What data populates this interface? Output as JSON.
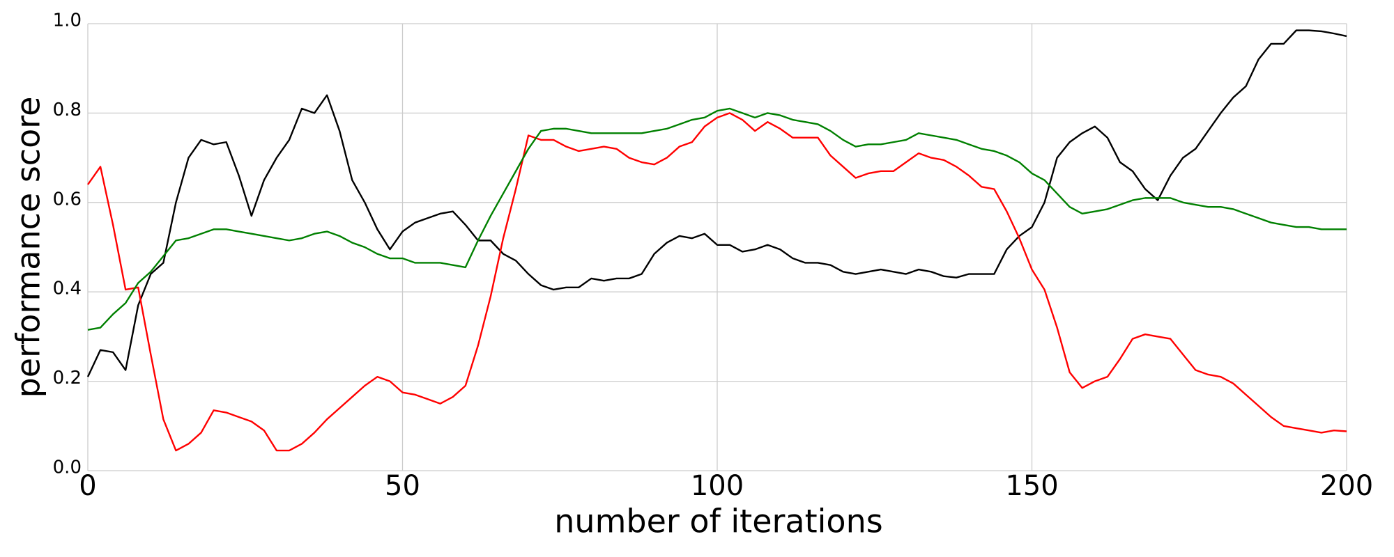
{
  "chart_data": {
    "type": "line",
    "xlabel": "number of iterations",
    "ylabel": "performance score",
    "x": [
      0,
      2,
      4,
      6,
      8,
      10,
      12,
      14,
      16,
      18,
      20,
      22,
      24,
      26,
      28,
      30,
      32,
      34,
      36,
      38,
      40,
      42,
      44,
      46,
      48,
      50,
      52,
      54,
      56,
      58,
      60,
      62,
      64,
      66,
      68,
      70,
      72,
      74,
      76,
      78,
      80,
      82,
      84,
      86,
      88,
      90,
      92,
      94,
      96,
      98,
      100,
      102,
      104,
      106,
      108,
      110,
      112,
      114,
      116,
      118,
      120,
      122,
      124,
      126,
      128,
      130,
      132,
      134,
      136,
      138,
      140,
      142,
      144,
      146,
      148,
      150,
      152,
      154,
      156,
      158,
      160,
      162,
      164,
      166,
      168,
      170,
      172,
      174,
      176,
      178,
      180,
      182,
      184,
      186,
      188,
      190,
      192,
      194,
      196,
      198,
      200
    ],
    "series": [
      {
        "color": "#000000",
        "values": [
          0.21,
          0.27,
          0.265,
          0.225,
          0.37,
          0.44,
          0.465,
          0.6,
          0.7,
          0.74,
          0.73,
          0.735,
          0.66,
          0.57,
          0.65,
          0.7,
          0.74,
          0.81,
          0.8,
          0.84,
          0.76,
          0.65,
          0.6,
          0.54,
          0.495,
          0.535,
          0.555,
          0.565,
          0.575,
          0.58,
          0.55,
          0.515,
          0.515,
          0.485,
          0.47,
          0.44,
          0.415,
          0.405,
          0.41,
          0.41,
          0.43,
          0.425,
          0.43,
          0.43,
          0.44,
          0.485,
          0.51,
          0.525,
          0.52,
          0.53,
          0.505,
          0.505,
          0.49,
          0.495,
          0.505,
          0.495,
          0.475,
          0.465,
          0.465,
          0.46,
          0.445,
          0.44,
          0.445,
          0.45,
          0.445,
          0.44,
          0.45,
          0.445,
          0.435,
          0.432,
          0.44,
          0.44,
          0.44,
          0.495,
          0.525,
          0.545,
          0.6,
          0.7,
          0.735,
          0.755,
          0.77,
          0.745,
          0.69,
          0.67,
          0.63,
          0.605,
          0.66,
          0.7,
          0.72,
          0.76,
          0.8,
          0.835,
          0.86,
          0.92,
          0.955,
          0.955,
          0.985,
          0.985,
          0.983,
          0.978,
          0.972
        ]
      },
      {
        "color": "#ff0000",
        "values": [
          0.64,
          0.68,
          0.55,
          0.405,
          0.41,
          0.26,
          0.115,
          0.045,
          0.06,
          0.085,
          0.135,
          0.13,
          0.12,
          0.11,
          0.09,
          0.045,
          0.045,
          0.06,
          0.085,
          0.115,
          0.14,
          0.165,
          0.19,
          0.21,
          0.2,
          0.175,
          0.17,
          0.16,
          0.15,
          0.165,
          0.19,
          0.28,
          0.39,
          0.52,
          0.63,
          0.75,
          0.74,
          0.74,
          0.725,
          0.715,
          0.72,
          0.725,
          0.72,
          0.7,
          0.69,
          0.685,
          0.7,
          0.725,
          0.735,
          0.77,
          0.79,
          0.8,
          0.785,
          0.76,
          0.78,
          0.765,
          0.745,
          0.745,
          0.745,
          0.705,
          0.68,
          0.655,
          0.665,
          0.67,
          0.67,
          0.69,
          0.71,
          0.7,
          0.695,
          0.68,
          0.66,
          0.635,
          0.63,
          0.58,
          0.52,
          0.45,
          0.405,
          0.32,
          0.22,
          0.185,
          0.2,
          0.21,
          0.25,
          0.295,
          0.305,
          0.3,
          0.295,
          0.26,
          0.225,
          0.215,
          0.21,
          0.195,
          0.17,
          0.145,
          0.12,
          0.1,
          0.095,
          0.09,
          0.085,
          0.09,
          0.088
        ]
      },
      {
        "color": "#008000",
        "values": [
          0.315,
          0.32,
          0.35,
          0.375,
          0.42,
          0.445,
          0.48,
          0.515,
          0.52,
          0.53,
          0.54,
          0.54,
          0.535,
          0.53,
          0.525,
          0.52,
          0.515,
          0.52,
          0.53,
          0.535,
          0.525,
          0.51,
          0.5,
          0.485,
          0.475,
          0.475,
          0.465,
          0.465,
          0.465,
          0.46,
          0.455,
          0.515,
          0.57,
          0.62,
          0.67,
          0.72,
          0.76,
          0.765,
          0.765,
          0.76,
          0.755,
          0.755,
          0.755,
          0.755,
          0.755,
          0.76,
          0.765,
          0.775,
          0.785,
          0.79,
          0.805,
          0.81,
          0.8,
          0.79,
          0.8,
          0.795,
          0.785,
          0.78,
          0.775,
          0.76,
          0.74,
          0.725,
          0.73,
          0.73,
          0.735,
          0.74,
          0.755,
          0.75,
          0.745,
          0.74,
          0.73,
          0.72,
          0.715,
          0.705,
          0.69,
          0.665,
          0.65,
          0.62,
          0.59,
          0.575,
          0.58,
          0.585,
          0.595,
          0.605,
          0.61,
          0.61,
          0.61,
          0.6,
          0.595,
          0.59,
          0.59,
          0.585,
          0.575,
          0.565,
          0.555,
          0.55,
          0.545,
          0.545,
          0.54,
          0.54,
          0.54
        ]
      }
    ],
    "xlim": [
      0,
      200
    ],
    "xticks": [
      0,
      50,
      100,
      150,
      200
    ],
    "ylim": [
      0,
      1
    ],
    "yticks": [
      {
        "value": 0,
        "label": "0.0"
      },
      {
        "value": 0.2,
        "label": "0.2"
      },
      {
        "value": 0.4,
        "label": "0.4"
      },
      {
        "value": 0.6,
        "label": "0.6"
      },
      {
        "value": 0.8,
        "label": "0.8"
      },
      {
        "value": 1,
        "label": "1.0"
      }
    ],
    "grid": true
  }
}
